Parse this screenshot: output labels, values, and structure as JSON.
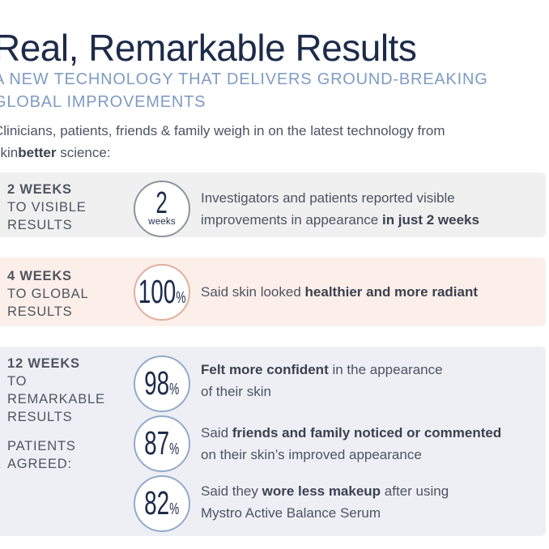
{
  "header": {
    "title": "Real, Remarkable Results",
    "subtitle_line1": "A NEW TECHNOLOGY THAT DELIVERS GROUND-BREAKING",
    "subtitle_line2": "GLOBAL IMPROVEMENTS"
  },
  "intro": {
    "line1": "Clinicians, patients, friends & family weigh in on the latest technology from",
    "line2_pre": "skin",
    "line2_bold": "better",
    "line2_post": " science:"
  },
  "colors": {
    "title_navy": "#1c2b49",
    "subtitle_blue": "#7e9cc2",
    "body_text": "#4e5362",
    "label_text": "#50545e",
    "row1_bg": "#f0f0f1",
    "row2_bg": "#fcefe9",
    "row3_bg": "#edeff5",
    "circle_gray_border": "#8e939d",
    "circle_salmon_border": "#e2ae9e",
    "circle_blue_border": "#94aac8"
  },
  "rows": [
    {
      "label_lines": [
        "2 WEEKS",
        "TO VISIBLE",
        "RESULTS"
      ],
      "items": [
        {
          "stat_value": "2",
          "stat_unit": "weeks",
          "line1": {
            "pre": "Investigators and patients reported visible",
            "bold": "",
            "post": ""
          },
          "line2": {
            "pre": "improvements in appearance ",
            "bold": "in just 2 weeks",
            "post": ""
          }
        }
      ]
    },
    {
      "label_lines": [
        "4 WEEKS",
        "TO GLOBAL",
        "RESULTS"
      ],
      "items": [
        {
          "stat_value": "100",
          "stat_unit": "%",
          "line1": {
            "pre": "Said skin looked ",
            "bold": "healthier and more radiant",
            "post": ""
          },
          "line2": {
            "pre": "",
            "bold": "",
            "post": ""
          }
        }
      ]
    },
    {
      "label_lines": [
        "12 WEEKS",
        "TO",
        "REMARKABLE",
        "RESULTS"
      ],
      "label_lines2": [
        "PATIENTS",
        "AGREED:"
      ],
      "items": [
        {
          "stat_value": "98",
          "stat_unit": "%",
          "line1": {
            "pre": "",
            "bold": "Felt more confident",
            "post": " in the appearance"
          },
          "line2": {
            "pre": "of their skin",
            "bold": "",
            "post": ""
          }
        },
        {
          "stat_value": "87",
          "stat_unit": "%",
          "line1": {
            "pre": "Said ",
            "bold": "friends and family noticed or commented",
            "post": ""
          },
          "line2": {
            "pre": "on their skin’s improved appearance",
            "bold": "",
            "post": ""
          }
        },
        {
          "stat_value": "82",
          "stat_unit": "%",
          "line1": {
            "pre": "Said they ",
            "bold": "wore less makeup",
            "post": " after using"
          },
          "line2": {
            "pre": "Mystro Active Balance Serum",
            "bold": "",
            "post": ""
          }
        }
      ]
    }
  ]
}
